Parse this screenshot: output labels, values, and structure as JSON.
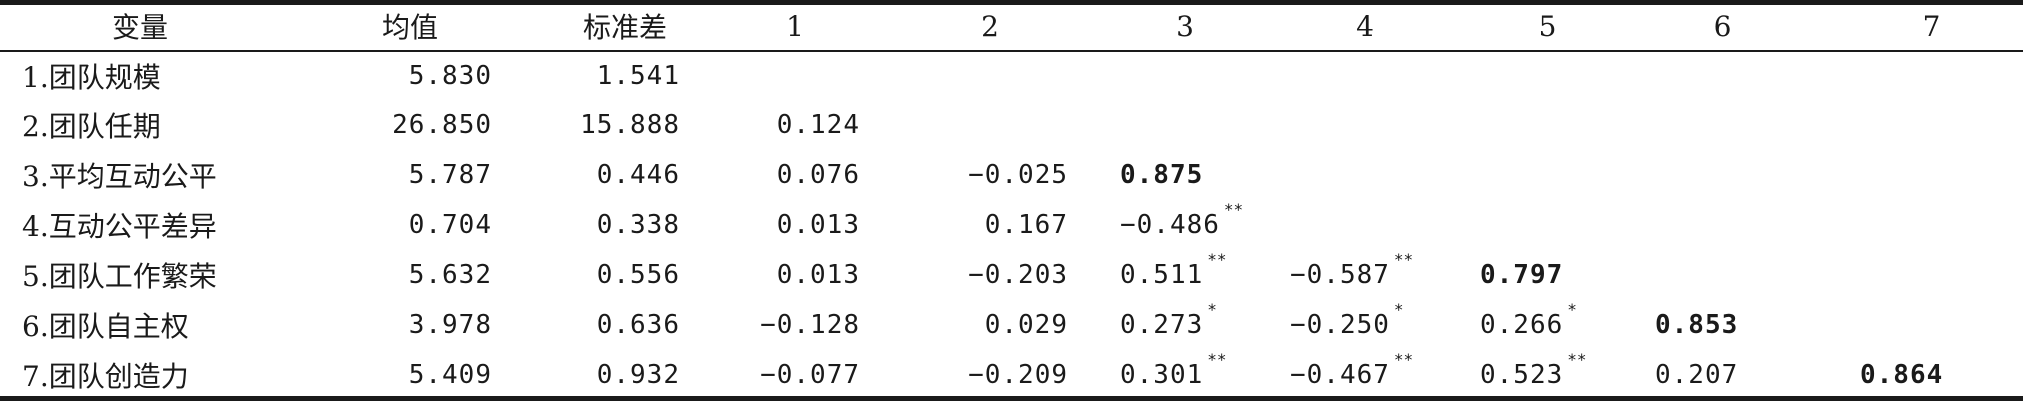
{
  "header": {
    "variable": "变量",
    "mean": "均值",
    "sd": "标准差",
    "cols": [
      "1",
      "2",
      "3",
      "4",
      "5",
      "6",
      "7"
    ]
  },
  "rows": [
    {
      "label": "1.团队规模",
      "mean": "5.830",
      "sd": "1.541",
      "cells": [
        "",
        "",
        "",
        "",
        "",
        "",
        ""
      ],
      "sig": [
        "",
        "",
        "",
        "",
        "",
        "",
        ""
      ]
    },
    {
      "label": "2.团队任期",
      "mean": "26.850",
      "sd": "15.888",
      "cells": [
        "0.124",
        "",
        "",
        "",
        "",
        "",
        ""
      ],
      "sig": [
        "",
        "",
        "",
        "",
        "",
        "",
        ""
      ]
    },
    {
      "label": "3.平均互动公平",
      "mean": "5.787",
      "sd": "0.446",
      "cells": [
        "0.076",
        "−0.025",
        "0.875",
        "",
        "",
        "",
        ""
      ],
      "sig": [
        "",
        "",
        "",
        "",
        "",
        "",
        ""
      ]
    },
    {
      "label": "4.互动公平差异",
      "mean": "0.704",
      "sd": "0.338",
      "cells": [
        "0.013",
        "0.167",
        "−0.486",
        "",
        "",
        "",
        ""
      ],
      "sig": [
        "",
        "",
        "**",
        "",
        "",
        "",
        ""
      ]
    },
    {
      "label": "5.团队工作繁荣",
      "mean": "5.632",
      "sd": "0.556",
      "cells": [
        "0.013",
        "−0.203",
        "0.511",
        "−0.587",
        "0.797",
        "",
        ""
      ],
      "sig": [
        "",
        "",
        "**",
        "**",
        "",
        "",
        ""
      ]
    },
    {
      "label": "6.团队自主权",
      "mean": "3.978",
      "sd": "0.636",
      "cells": [
        "−0.128",
        "0.029",
        "0.273",
        "−0.250",
        "0.266",
        "0.853",
        ""
      ],
      "sig": [
        "",
        "",
        "*",
        "*",
        "*",
        "",
        ""
      ]
    },
    {
      "label": "7.团队创造力",
      "mean": "5.409",
      "sd": "0.932",
      "cells": [
        "−0.077",
        "−0.209",
        "0.301",
        "−0.467",
        "0.523",
        "0.207",
        "0.864"
      ],
      "sig": [
        "",
        "",
        "**",
        "**",
        "**",
        "",
        ""
      ]
    }
  ]
}
